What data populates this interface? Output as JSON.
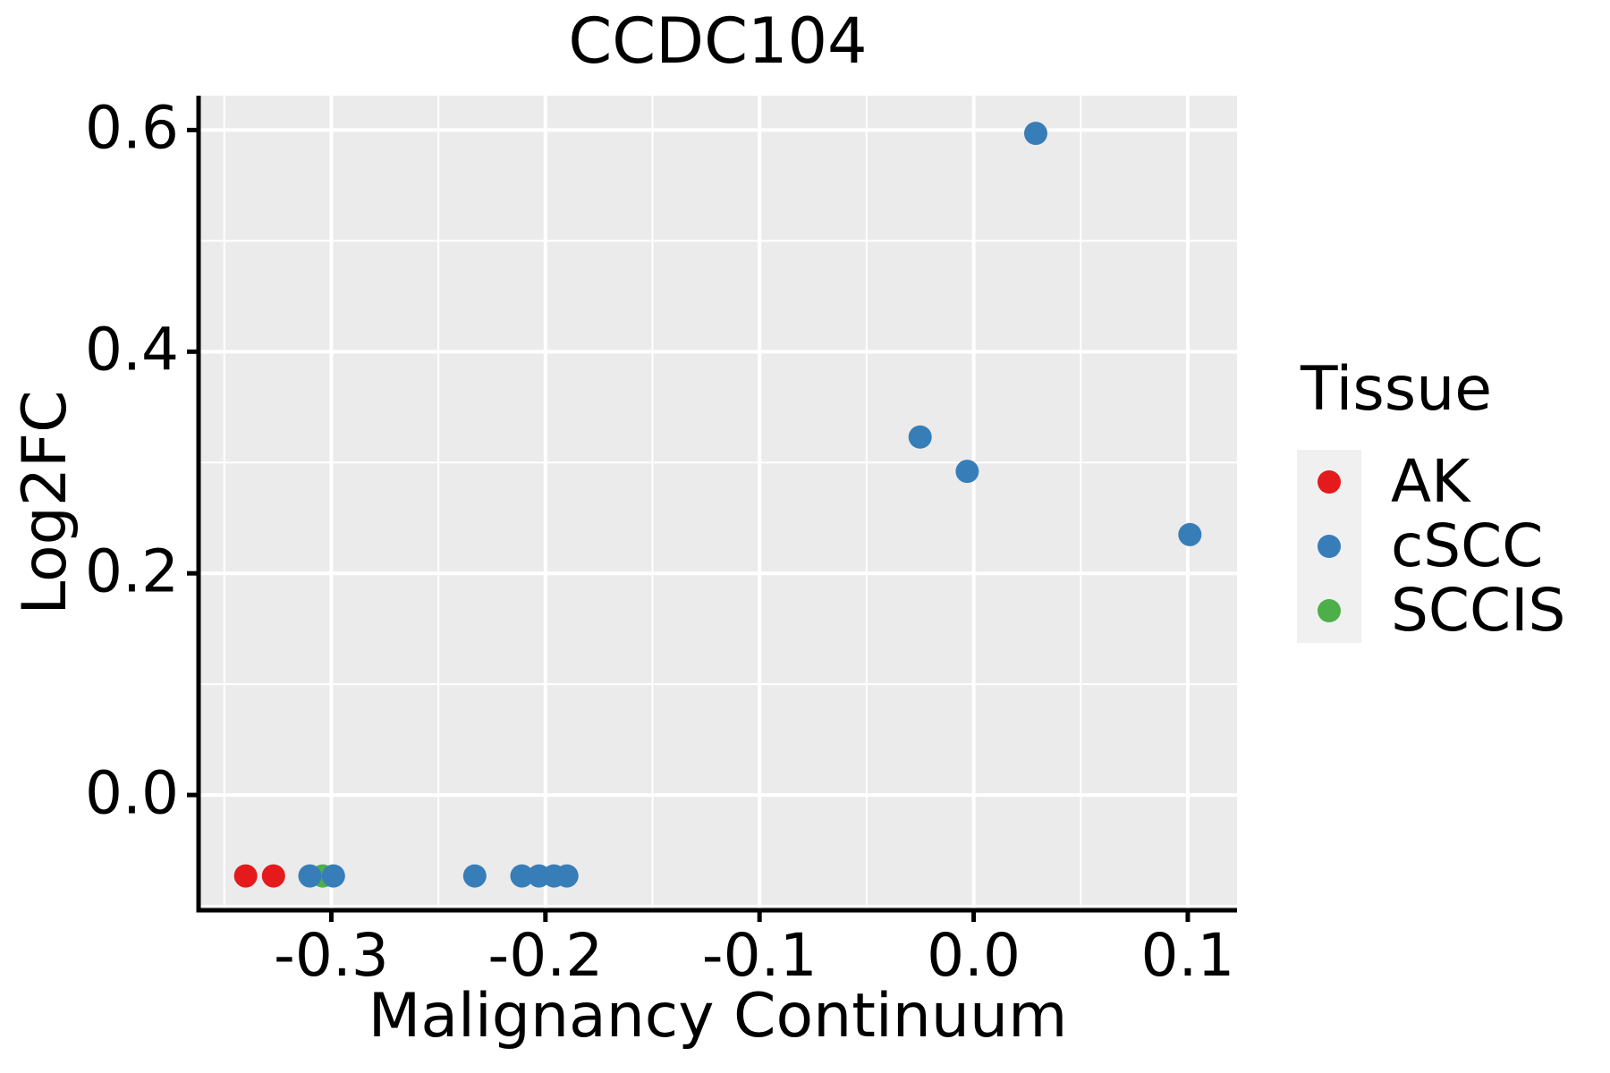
{
  "chart_data": {
    "type": "scatter",
    "title": "CCDC104",
    "xlabel": "Malignancy Continuum",
    "ylabel": "Log2FC",
    "xlim": [
      -0.362,
      0.123
    ],
    "ylim": [
      -0.104,
      0.631
    ],
    "x_ticks": {
      "values": [
        -0.3,
        -0.2,
        -0.1,
        0.0,
        0.1
      ],
      "labels": [
        "-0.3",
        "-0.2",
        "-0.1",
        "0.0",
        "0.1"
      ]
    },
    "y_ticks": {
      "values": [
        0.0,
        0.2,
        0.4,
        0.6
      ],
      "labels": [
        "0.0",
        "0.2",
        "0.4",
        "0.6"
      ]
    },
    "x_minor_ticks": [
      -0.35,
      -0.25,
      -0.15,
      -0.05,
      0.05
    ],
    "y_minor_ticks": [
      -0.1,
      0.1,
      0.3,
      0.5
    ],
    "grid": "on",
    "legend_position": "right",
    "legend": {
      "title": "Tissue",
      "entries": [
        {
          "label": "AK",
          "color": "#E41A1C"
        },
        {
          "label": "cSCC",
          "color": "#377EB8"
        },
        {
          "label": "SCCIS",
          "color": "#4DAF4A"
        }
      ]
    },
    "series": [
      {
        "name": "AK",
        "color": "#E41A1C",
        "points": [
          [
            -0.34,
            -0.073
          ],
          [
            -0.327,
            -0.073
          ]
        ]
      },
      {
        "name": "SCCIS",
        "color": "#4DAF4A",
        "points": [
          [
            -0.304,
            -0.073
          ]
        ]
      },
      {
        "name": "cSCC",
        "color": "#377EB8",
        "points": [
          [
            -0.31,
            -0.073
          ],
          [
            -0.299,
            -0.073
          ],
          [
            -0.233,
            -0.073
          ],
          [
            -0.211,
            -0.073
          ],
          [
            -0.203,
            -0.073
          ],
          [
            -0.196,
            -0.073
          ],
          [
            -0.19,
            -0.073
          ],
          [
            -0.025,
            0.323
          ],
          [
            -0.003,
            0.292
          ],
          [
            0.029,
            0.597
          ],
          [
            0.101,
            0.235
          ]
        ]
      }
    ]
  },
  "colors": {
    "panel_bg": "#EBEBEB",
    "grid": "#FFFFFF",
    "axis": "#000000",
    "text": "#000000",
    "legend_key_bg": "#F0F0F0"
  },
  "style": {
    "point_radius": 13,
    "legend_dot_diameter": 26
  }
}
